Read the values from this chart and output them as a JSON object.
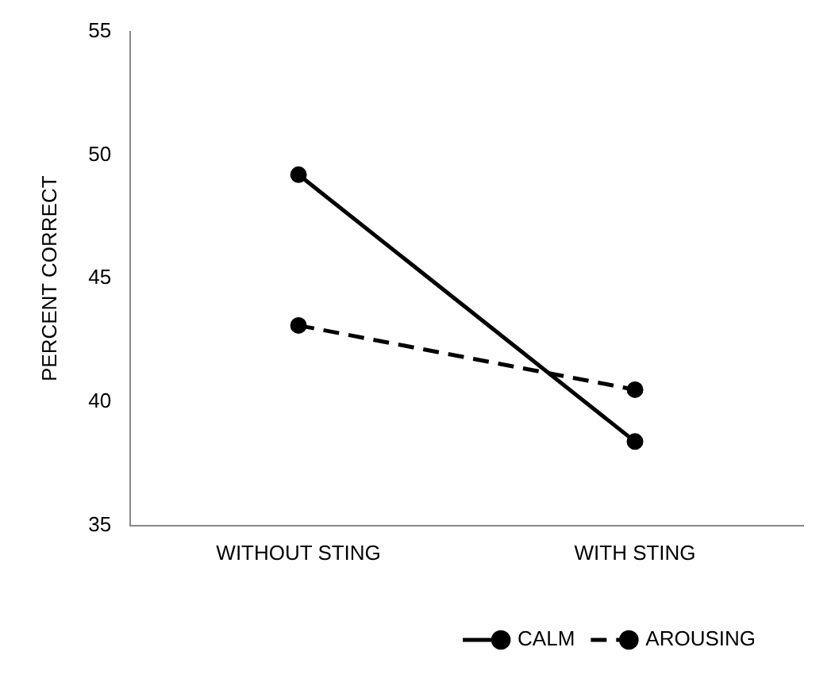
{
  "chart_data": {
    "type": "line",
    "ylabel": "PERCENT CORRECT",
    "categories": [
      "WITHOUT STING",
      "WITH STING"
    ],
    "series": [
      {
        "name": "CALM",
        "color": "#000000",
        "values": [
          49.2,
          38.4
        ],
        "line_style": "solid"
      },
      {
        "name": "AROUSING",
        "color": "#000000",
        "values": [
          43.1,
          40.5
        ],
        "line_style": "dashed"
      }
    ],
    "ylim": [
      35,
      55
    ],
    "yticks": [
      35,
      40,
      45,
      50,
      55
    ],
    "grid": false,
    "legend": "bottom right",
    "marker": "circle"
  }
}
